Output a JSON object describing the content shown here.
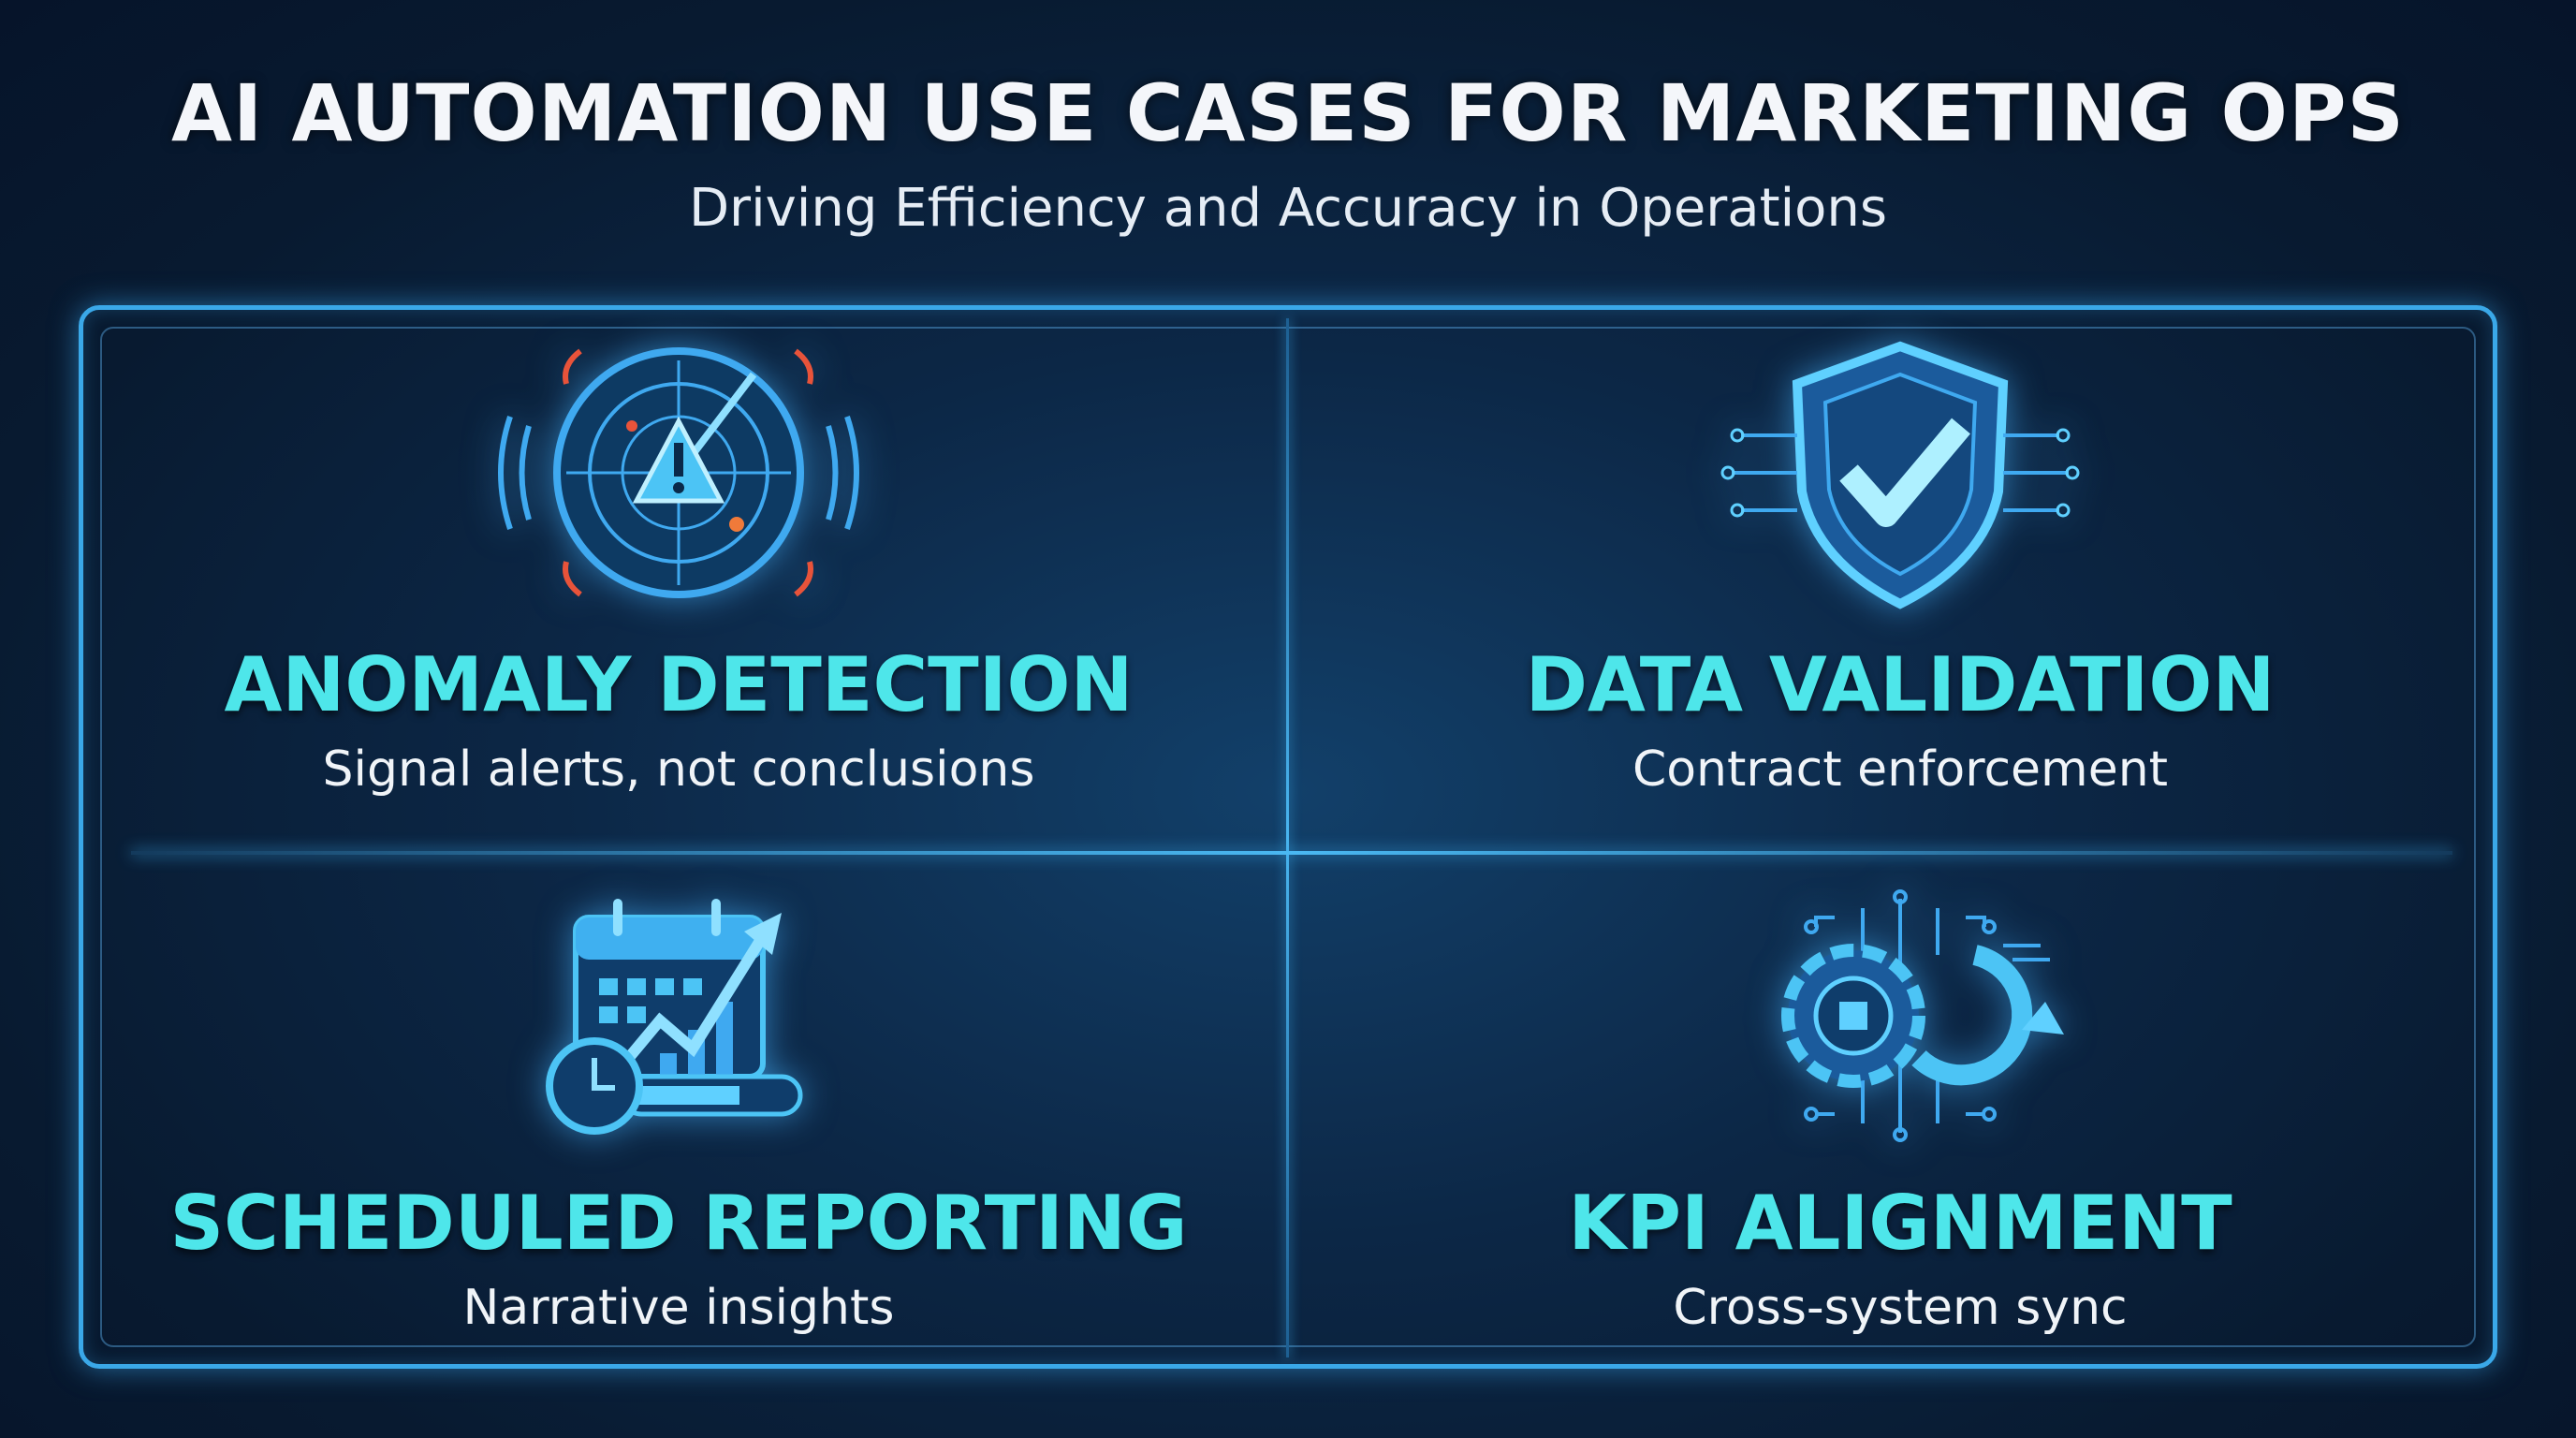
{
  "header": {
    "title": "AI AUTOMATION USE CASES FOR MARKETING OPS",
    "subtitle": "Driving Efficiency and Accuracy in Operations"
  },
  "use_cases": [
    {
      "title": "ANOMALY DETECTION",
      "subtitle": "Signal alerts, not conclusions",
      "icon": "radar-warning-icon"
    },
    {
      "title": "DATA VALIDATION",
      "subtitle": "Contract enforcement",
      "icon": "shield-check-icon"
    },
    {
      "title": "SCHEDULED REPORTING",
      "subtitle": "Narrative insights",
      "icon": "calendar-chart-icon"
    },
    {
      "title": "KPI ALIGNMENT",
      "subtitle": "Cross-system sync",
      "icon": "gear-sync-icon"
    }
  ],
  "colors": {
    "accent": "#3aa8e8",
    "heading": "#4ee6ea",
    "alert": "#e8533a",
    "background": "#0a2140"
  }
}
